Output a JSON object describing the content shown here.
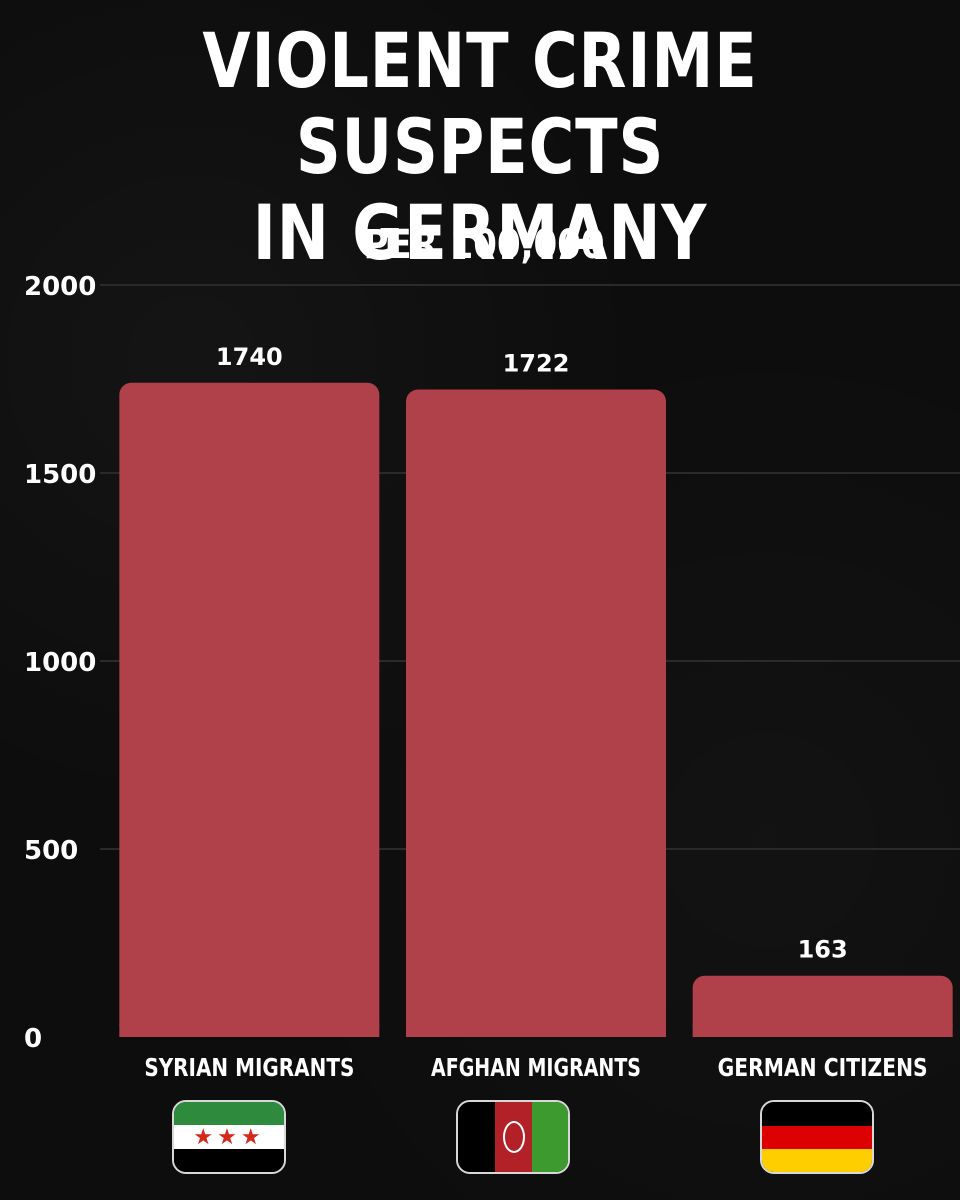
{
  "title_line1": "VIOLENT CRIME SUSPECTS",
  "title_line2": "IN GERMANY",
  "subtitle": "PER 100,000",
  "colors": {
    "background": "#0c0c0c",
    "bar": "#b0404a",
    "text": "#ffffff",
    "grid": "#2a2a2a"
  },
  "chart_data": {
    "type": "bar",
    "title": "VIOLENT CRIME SUSPECTS IN GERMANY",
    "subtitle": "PER 100,000",
    "categories": [
      "SYRIAN MIGRANTS",
      "AFGHAN MIGRANTS",
      "GERMAN CITIZENS"
    ],
    "values": [
      1740,
      1722,
      163
    ],
    "data_labels": [
      "1740",
      "1722",
      "163"
    ],
    "ylim": [
      0,
      2000
    ],
    "yticks": [
      0,
      500,
      1000,
      1500,
      2000
    ],
    "ytick_labels": [
      "0",
      "500",
      "1000",
      "1500",
      "2000"
    ],
    "grid": true,
    "legend": "none"
  },
  "flags": [
    {
      "name": "syria-flag-icon",
      "stars": "★★★",
      "colors": [
        "#2e8b3e",
        "#ffffff",
        "#000000",
        "#d62718"
      ]
    },
    {
      "name": "afghanistan-flag-icon",
      "colors": [
        "#000000",
        "#b22028",
        "#3c9a2e"
      ]
    },
    {
      "name": "germany-flag-icon",
      "colors": [
        "#000000",
        "#dd0000",
        "#ffce00"
      ]
    }
  ]
}
